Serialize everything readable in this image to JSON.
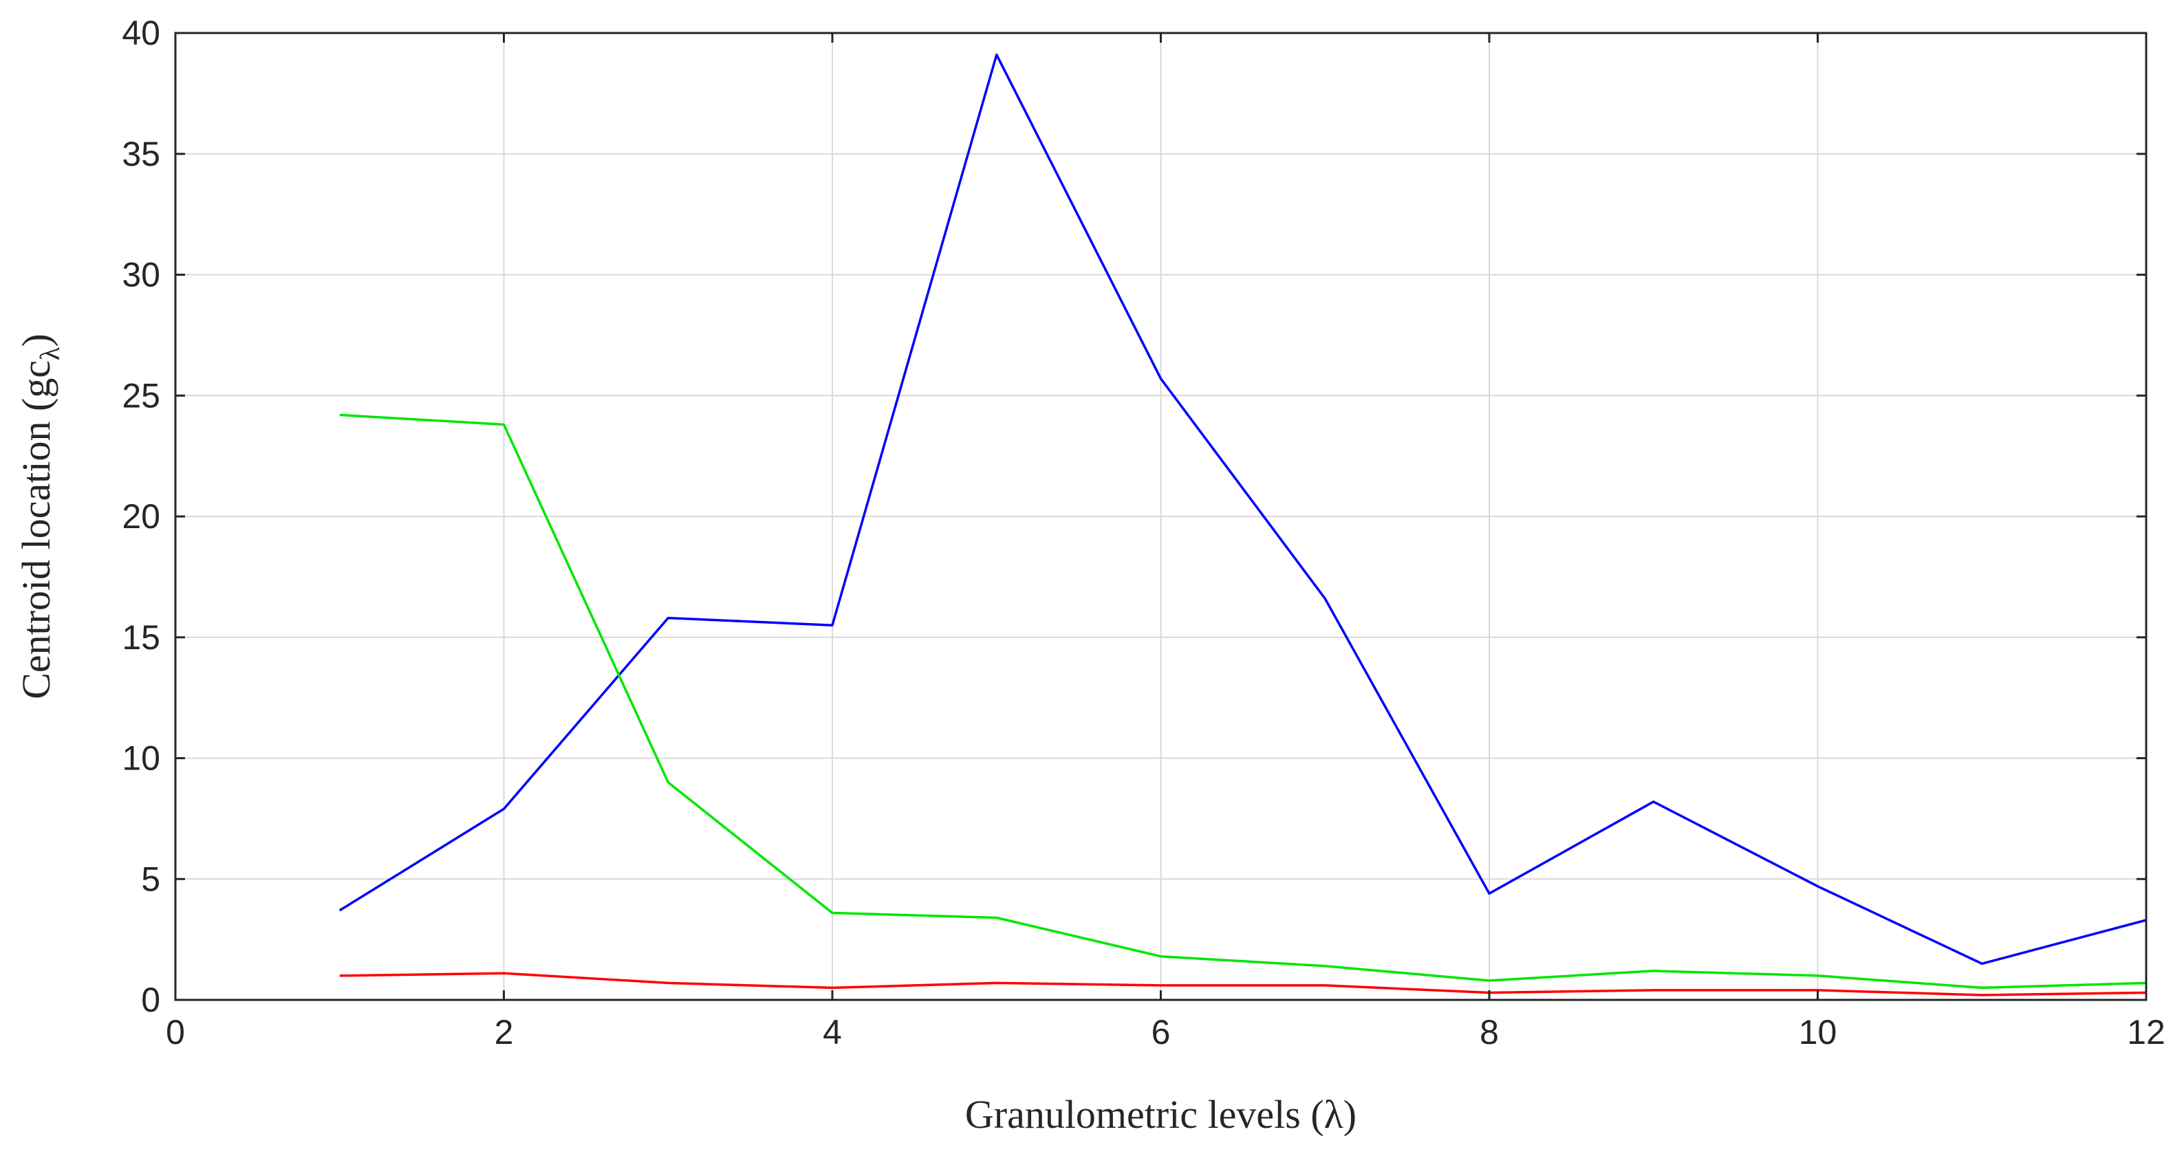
{
  "chart_data": {
    "type": "line",
    "title": "",
    "xlabel": "Granulometric levels (λ)",
    "ylabel_main": "Centroid location (gc",
    "ylabel_sub": "λ",
    "ylabel_close": ")",
    "xlim": [
      0,
      12
    ],
    "ylim": [
      0,
      40
    ],
    "xticks": [
      "0",
      "2",
      "4",
      "6",
      "8",
      "10",
      "12"
    ],
    "yticks": [
      "0",
      "5",
      "10",
      "15",
      "20",
      "25",
      "30",
      "35",
      "40"
    ],
    "grid": true,
    "x": [
      1,
      2,
      3,
      4,
      5,
      6,
      7,
      8,
      9,
      10,
      11,
      12
    ],
    "series": [
      {
        "color": "#0000ff",
        "values": [
          3.7,
          7.9,
          15.8,
          15.5,
          39.1,
          25.7,
          16.6,
          4.4,
          8.2,
          4.7,
          1.5,
          3.3
        ]
      },
      {
        "color": "#00e600",
        "values": [
          24.2,
          23.8,
          9.0,
          3.6,
          3.4,
          1.8,
          1.4,
          0.8,
          1.2,
          1.0,
          0.5,
          0.7
        ]
      },
      {
        "color": "#ff0000",
        "values": [
          1.0,
          1.1,
          0.7,
          0.5,
          0.7,
          0.6,
          0.6,
          0.3,
          0.4,
          0.4,
          0.2,
          0.3
        ]
      }
    ]
  }
}
